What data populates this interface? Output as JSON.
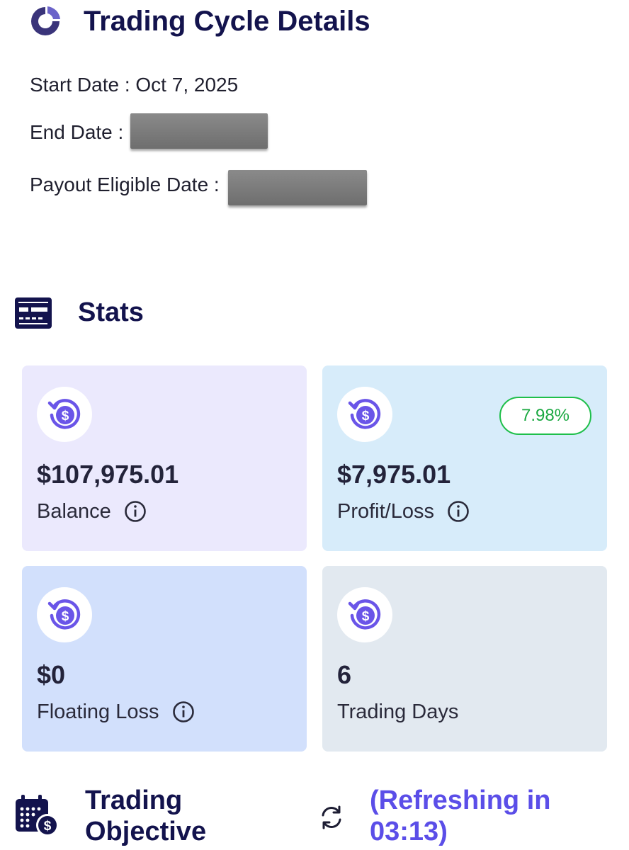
{
  "cycle": {
    "title": "Trading Cycle Details",
    "start_label": "Start Date :",
    "start_value": "Oct 7, 2025",
    "end_label": "End Date :",
    "payout_label": "Payout Eligible Date :"
  },
  "stats": {
    "title": "Stats",
    "cards": [
      {
        "value": "$107,975.01",
        "label": "Balance",
        "has_info": true,
        "bg": "#ebe9fd"
      },
      {
        "value": "$7,975.01",
        "label": "Profit/Loss",
        "has_info": true,
        "badge": "7.98%",
        "bg": "#d7ecfa"
      },
      {
        "value": "$0",
        "label": "Floating Loss",
        "has_info": true,
        "bg": "#d2e0fc"
      },
      {
        "value": "6",
        "label": "Trading Days",
        "has_info": false,
        "bg": "#e2e9f0"
      }
    ]
  },
  "objective": {
    "title_line1": "Trading",
    "title_line2": "Objective",
    "refresh_line1": "(Refreshing in",
    "refresh_line2": "03:13)"
  },
  "colors": {
    "heading": "#13134d",
    "accent": "#5b4ee8",
    "positive": "#1aa841"
  },
  "icons": {
    "cycle": "pie-chart-icon",
    "stats": "dashboard-card-icon",
    "card": "dollar-refresh-icon",
    "info": "info-icon",
    "objective": "calendar-dollar-icon",
    "refresh": "refresh-icon"
  }
}
